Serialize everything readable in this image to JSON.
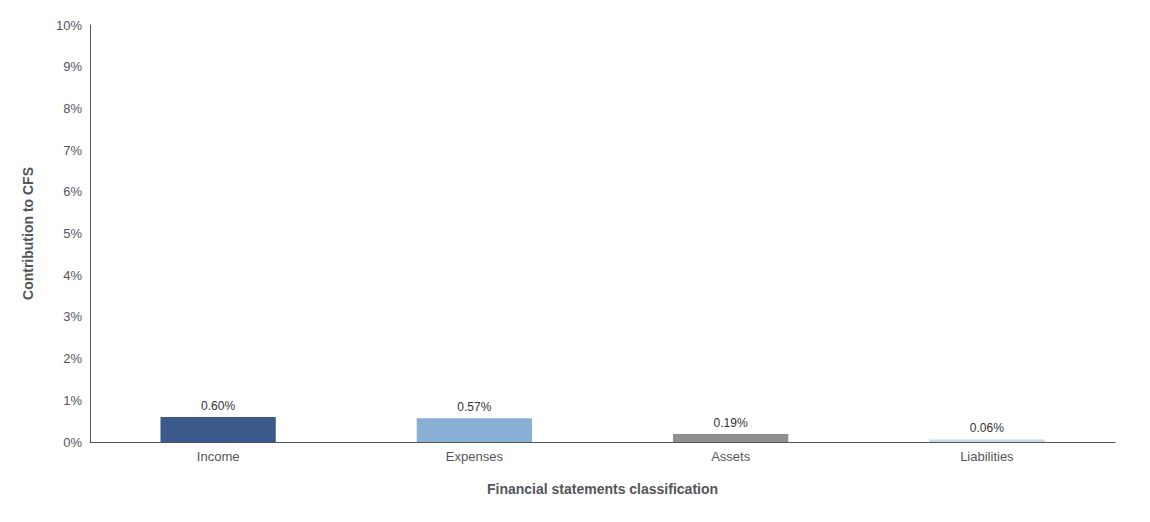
{
  "chart_data": {
    "type": "bar",
    "categories": [
      "Income",
      "Expenses",
      "Assets",
      "Liabilities"
    ],
    "values": [
      0.6,
      0.57,
      0.19,
      0.06
    ],
    "value_labels": [
      "0.60%",
      "0.57%",
      "0.19%",
      "0.06%"
    ],
    "data_labels": true,
    "colors": [
      "#3a5a8c",
      "#8aafd4",
      "#909090",
      "#c5d8e8"
    ],
    "xlabel": "Financial statements classification",
    "ylabel": "Contribution to CFS",
    "ylim": [
      0,
      10
    ],
    "yticks": [
      {
        "value": 0,
        "label": "0%"
      },
      {
        "value": 1,
        "label": "1%"
      },
      {
        "value": 2,
        "label": "2%"
      },
      {
        "value": 3,
        "label": "3%"
      },
      {
        "value": 4,
        "label": "4%"
      },
      {
        "value": 5,
        "label": "5%"
      },
      {
        "value": 6,
        "label": "6%"
      },
      {
        "value": 7,
        "label": "7%"
      },
      {
        "value": 8,
        "label": "8%"
      },
      {
        "value": 9,
        "label": "9%"
      },
      {
        "value": 10,
        "label": "10%"
      }
    ],
    "grid": false
  }
}
